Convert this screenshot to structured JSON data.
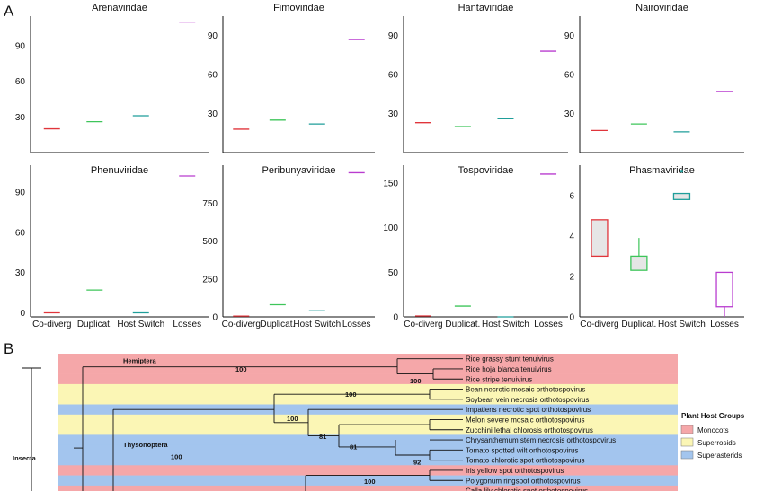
{
  "panel_a_label": "A",
  "panel_b_label": "B",
  "categories": [
    "Co-diverg",
    "Duplicat.",
    "Host Switch",
    "Losses"
  ],
  "colors": {
    "Co-diverg": "#e0353b",
    "Duplicat.": "#3ec55a",
    "Host Switch": "#1f9e9a",
    "Losses": "#b93ccf",
    "monocots": "#f5a7a9",
    "superrosids": "#fbf6b5",
    "superasterids": "#a3c5ee"
  },
  "chart_data": [
    {
      "type": "box",
      "title": "Arenaviridae",
      "categories": [
        "Co-diverg",
        "Duplicat.",
        "Host Switch",
        "Losses"
      ],
      "values": [
        20,
        26,
        31,
        110
      ],
      "yticks": [
        30,
        60,
        90
      ],
      "ylim": [
        0,
        115
      ],
      "xlabels_shown": false
    },
    {
      "type": "box",
      "title": "Fimoviridae",
      "categories": [
        "Co-diverg",
        "Duplicat.",
        "Host Switch",
        "Losses"
      ],
      "values": [
        18,
        25,
        22,
        87
      ],
      "yticks": [
        30,
        60,
        90
      ],
      "ylim": [
        0,
        105
      ],
      "xlabels_shown": false
    },
    {
      "type": "box",
      "title": "Hantaviridae",
      "categories": [
        "Co-diverg",
        "Duplicat.",
        "Host Switch",
        "Losses"
      ],
      "values": [
        23,
        20,
        26,
        78
      ],
      "yticks": [
        30,
        60,
        90
      ],
      "ylim": [
        0,
        105
      ],
      "xlabels_shown": false
    },
    {
      "type": "box",
      "title": "Nairoviridae",
      "categories": [
        "Co-diverg",
        "Duplicat.",
        "Host Switch",
        "Losses"
      ],
      "values": [
        17,
        22,
        16,
        47
      ],
      "yticks": [
        30,
        60,
        90
      ],
      "ylim": [
        0,
        105
      ],
      "xlabels_shown": false
    },
    {
      "type": "box",
      "title": "Phenuviridae",
      "categories": [
        "Co-diverg",
        "Duplicat.",
        "Host Switch",
        "Losses"
      ],
      "values": [
        0,
        17,
        0,
        102
      ],
      "yticks": [
        0,
        30,
        60,
        90
      ],
      "ylim": [
        -3,
        110
      ],
      "xlabels_shown": true
    },
    {
      "type": "box",
      "title": "Peribunyaviridae",
      "categories": [
        "Co-diverg",
        "Duplicat.",
        "Host Switch",
        "Losses"
      ],
      "values": [
        5,
        80,
        40,
        950
      ],
      "yticks": [
        0,
        250,
        500,
        750
      ],
      "ylim": [
        0,
        1000
      ],
      "xlabels_shown": true
    },
    {
      "type": "box",
      "title": "Tospoviridae",
      "categories": [
        "Co-diverg",
        "Duplicat.",
        "Host Switch",
        "Losses"
      ],
      "values": [
        1,
        12,
        0,
        160
      ],
      "yticks": [
        0,
        50,
        100,
        150
      ],
      "ylim": [
        0,
        170
      ],
      "xlabels_shown": true
    },
    {
      "type": "box",
      "title": "Phasmaviridae",
      "categories": [
        "Co-diverg",
        "Duplicat.",
        "Host Switch",
        "Losses"
      ],
      "boxes": [
        {
          "q1": 3,
          "q3": 4.8,
          "min": 3,
          "max": 4.8
        },
        {
          "q1": 2.3,
          "q3": 3,
          "min": 2.3,
          "max": 3.9
        },
        {
          "q1": 5.8,
          "q3": 6.1,
          "min": 5.8,
          "max": 6.1,
          "outlier": 7.2
        },
        {
          "q1": 0.5,
          "q3": 2.2,
          "min": 0,
          "max": 2.2
        }
      ],
      "yticks": [
        0,
        2,
        4,
        6
      ],
      "ylim": [
        0,
        7.5
      ],
      "xlabels_shown": true
    }
  ],
  "tree": {
    "clades": [
      "Hemiptera",
      "Thysonoptera"
    ],
    "host_group": "Insecta",
    "taxa": [
      {
        "name": "Rice grassy stunt tenuivirus",
        "group": "monocots"
      },
      {
        "name": "Rice hoja blanca tenuivirus",
        "group": "monocots"
      },
      {
        "name": "Rice stripe tenuivirus",
        "group": "monocots"
      },
      {
        "name": "Bean necrotic mosaic orthotospovirus",
        "group": "superrosids"
      },
      {
        "name": "Soybean vein necrosis orthotospovirus",
        "group": "superrosids"
      },
      {
        "name": "Impatiens necrotic spot orthotospovirus",
        "group": "superasterids"
      },
      {
        "name": "Melon severe mosaic orthotospovirus",
        "group": "superrosids"
      },
      {
        "name": "Zucchini lethal chlorosis orthotospovirus",
        "group": "superrosids"
      },
      {
        "name": "Chrysanthemum stem necrosis orthotospovirus",
        "group": "superasterids"
      },
      {
        "name": "Tomato spotted wilt orthotospovirus",
        "group": "superasterids"
      },
      {
        "name": "Tomato chlorotic spot orthotospovirus",
        "group": "superasterids"
      },
      {
        "name": "Iris yellow spot orthotospovirus",
        "group": "monocots"
      },
      {
        "name": "Polygonum ringspot orthotospovirus",
        "group": "superasterids"
      },
      {
        "name": "Calla lily chlorotic spot orthotospovirus",
        "group": "monocots"
      }
    ],
    "supports": [
      "100",
      "100",
      "100",
      "100",
      "81",
      "81",
      "92",
      "100",
      "100"
    ]
  },
  "legend": {
    "title": "Plant Host Groups",
    "items": [
      {
        "label": "Monocots",
        "group": "monocots"
      },
      {
        "label": "Superrosids",
        "group": "superrosids"
      },
      {
        "label": "Superasterids",
        "group": "superasterids"
      }
    ]
  }
}
